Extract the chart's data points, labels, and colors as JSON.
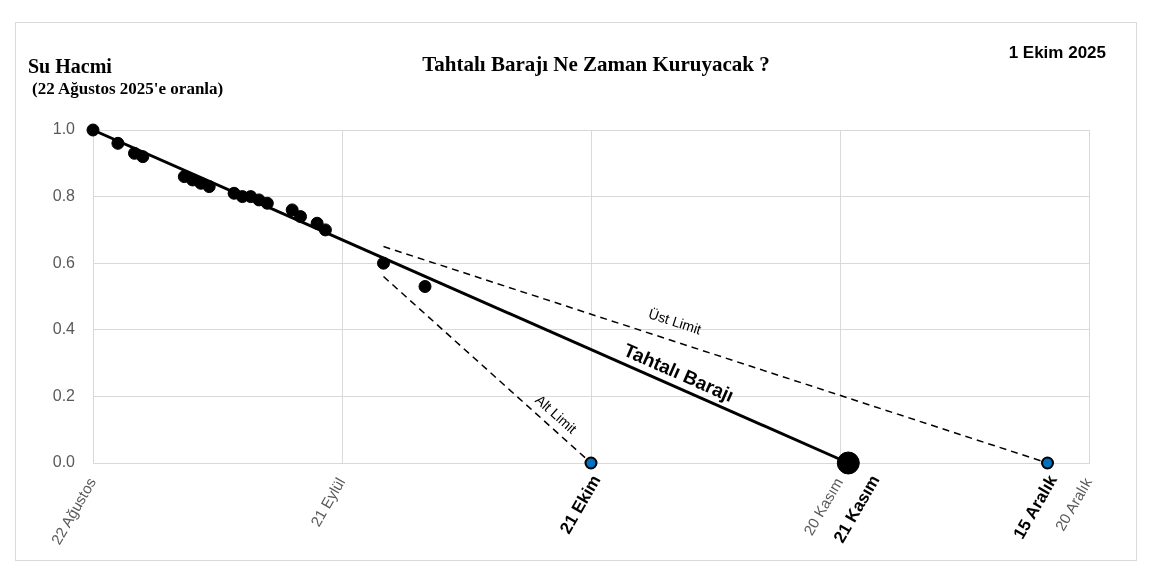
{
  "chart_data": {
    "type": "scatter",
    "title": "Tahtalı Barajı Ne Zaman Kuruyacak ?",
    "ylabel": "Su Hacmi\n(22 Ağustos 2025'e oranla)",
    "annotations": [
      "1 Ekim 2025",
      {
        "text": "21 Ekim",
        "x": "2025-10-21",
        "y": 0
      },
      {
        "text": "21 Kasım",
        "x": "2025-11-21",
        "y": 0
      },
      {
        "text": "15 Aralık",
        "x": "2025-12-15",
        "y": 0
      }
    ],
    "xlim": [
      "2025-08-22",
      "2025-12-20"
    ],
    "xticks": [
      {
        "value": "2025-08-22",
        "label": "22 Ağustos"
      },
      {
        "value": "2025-09-21",
        "label": "21 Eylül"
      },
      {
        "value": "2025-10-21",
        "label": null
      },
      {
        "value": "2025-11-20",
        "label": "20 Kasım"
      },
      {
        "value": "2025-12-20",
        "label": "20 Aralık"
      }
    ],
    "ylim": [
      0,
      1
    ],
    "yticks": [
      {
        "value": 0,
        "label": "0.0"
      },
      0.2,
      0.4,
      0.6,
      0.8,
      {
        "value": 1,
        "label": "1.0"
      }
    ],
    "grid": true,
    "series": [
      {
        "type": "scatter",
        "color": "#000000",
        "marker": "circle",
        "x": [
          "2025-08-22",
          "2025-08-25",
          "2025-08-27",
          "2025-08-28",
          "2025-09-02",
          "2025-09-03",
          "2025-09-04",
          "2025-09-05",
          "2025-09-08",
          "2025-09-09",
          "2025-09-10",
          "2025-09-11",
          "2025-09-12",
          "2025-09-15",
          "2025-09-16",
          "2025-09-18",
          "2025-09-19",
          "2025-09-26",
          "2025-10-01"
        ],
        "values": [
          1.0,
          0.96,
          0.93,
          0.92,
          0.86,
          0.85,
          0.84,
          0.83,
          0.81,
          0.8,
          0.8,
          0.79,
          0.78,
          0.76,
          0.74,
          0.72,
          0.7,
          0.6,
          0.53
        ]
      },
      {
        "type": "line",
        "name": "Tahtalı Barajı",
        "color": "#000000",
        "marker": "none",
        "line_style": "solid",
        "x": [
          "2025-08-22",
          "2025-11-21"
        ],
        "values": [
          1.0,
          0
        ]
      },
      {
        "type": "line",
        "name": "Alt Limit",
        "color": "#000000",
        "marker": "none",
        "line_style": "dashed",
        "x": [
          "2025-09-26",
          "2025-10-21"
        ],
        "values": [
          0.56,
          0
        ]
      },
      {
        "type": "line",
        "name": "Üst Limit",
        "color": "#000000",
        "marker": "none",
        "line_style": "dashed",
        "x": [
          "2025-09-26",
          "2025-12-15"
        ],
        "values": [
          0.65,
          0
        ]
      },
      {
        "type": "scatter",
        "color": "#0070c0",
        "marker": "circle",
        "x": [
          "2025-10-21",
          "2025-12-15"
        ],
        "values": [
          0,
          0
        ]
      },
      {
        "type": "scatter",
        "color": "#000000",
        "marker": "circle",
        "x": [
          "2025-11-21"
        ],
        "values": [
          0
        ]
      }
    ]
  }
}
